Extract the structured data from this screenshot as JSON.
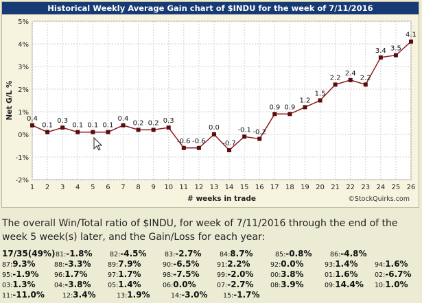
{
  "chart_data": {
    "type": "line",
    "title": "Historical Weekly Average Gain chart of $INDU for the week of 7/11/2016",
    "xlabel": "# weeks in trade",
    "ylabel": "Net G/L %",
    "ylim": [
      -2,
      5
    ],
    "y_ticks": [
      "-2%",
      "-1%",
      "0%",
      "1%",
      "2%",
      "3%",
      "4%",
      "5%"
    ],
    "x": [
      1,
      2,
      3,
      4,
      5,
      6,
      7,
      8,
      9,
      10,
      11,
      12,
      13,
      14,
      15,
      16,
      17,
      18,
      19,
      20,
      21,
      22,
      23,
      24,
      25,
      26
    ],
    "values": [
      0.4,
      0.1,
      0.3,
      0.1,
      0.1,
      0.1,
      0.4,
      0.2,
      0.2,
      0.3,
      -0.6,
      -0.6,
      0.0,
      -0.7,
      -0.1,
      -0.2,
      0.9,
      0.9,
      1.2,
      1.5,
      2.2,
      2.4,
      2.2,
      3.4,
      3.5,
      4.1
    ],
    "data_labels": [
      "0.4",
      "0.1",
      "0.3",
      "0.1",
      "0.1",
      "0.1",
      "0.4",
      "0.2",
      "0.2",
      "0.3",
      "-0.6",
      "-0.6",
      "0.0",
      "-0.7",
      "-0.1",
      "-0.2",
      "0.9",
      "0.9",
      "1.2",
      "1.5",
      "2.2",
      "2.4",
      "2.2",
      "3.4",
      "3.5",
      "4.1"
    ],
    "watermark": "©StockQuirks.com",
    "grid": true,
    "line_color": "#8b1a1a",
    "marker_color": "#5a0d0d"
  },
  "summary": "The overall Win/Total ratio of $INDU, for week of 7/11/2016 through the end of the week 5 week(s) later, and the Gain/Loss for each year:",
  "stats": {
    "first": "17/35(49%)",
    "years": [
      {
        "y": "81:",
        "v": "-1.8%"
      },
      {
        "y": "82:",
        "v": "-4.5%"
      },
      {
        "y": "83:",
        "v": "-2.7%"
      },
      {
        "y": "84:",
        "v": "8.7%"
      },
      {
        "y": "85:",
        "v": "-0.8%"
      },
      {
        "y": "86:",
        "v": "-4.8%"
      },
      {
        "y": "87:",
        "v": "9.3%"
      },
      {
        "y": "88:",
        "v": "-3.3%"
      },
      {
        "y": "89:",
        "v": "7.9%"
      },
      {
        "y": "90:",
        "v": "-6.5%"
      },
      {
        "y": "91:",
        "v": "2.2%"
      },
      {
        "y": "92:",
        "v": "0.0%"
      },
      {
        "y": "93:",
        "v": "1.4%"
      },
      {
        "y": "94:",
        "v": "1.6%"
      },
      {
        "y": "95:",
        "v": "-1.9%"
      },
      {
        "y": "96:",
        "v": "1.7%"
      },
      {
        "y": "97:",
        "v": "1.7%"
      },
      {
        "y": "98:",
        "v": "-7.5%"
      },
      {
        "y": "99:",
        "v": "-2.0%"
      },
      {
        "y": "00:",
        "v": "3.8%"
      },
      {
        "y": "01:",
        "v": "1.6%"
      },
      {
        "y": "02:",
        "v": "-6.7%"
      },
      {
        "y": "03:",
        "v": "1.3%"
      },
      {
        "y": "04:",
        "v": "-3.8%"
      },
      {
        "y": "05:",
        "v": "1.4%"
      },
      {
        "y": "06:",
        "v": "0.0%"
      },
      {
        "y": "07:",
        "v": "-2.7%"
      },
      {
        "y": "08:",
        "v": "3.9%"
      },
      {
        "y": "09:",
        "v": "14.4%"
      },
      {
        "y": "10:",
        "v": "1.0%"
      },
      {
        "y": "11:",
        "v": "-11.0%"
      },
      {
        "y": "12:",
        "v": "3.4%"
      },
      {
        "y": "13:",
        "v": "1.9%"
      },
      {
        "y": "14:",
        "v": "-3.0%"
      },
      {
        "y": "15:",
        "v": "-1.7%"
      }
    ]
  }
}
